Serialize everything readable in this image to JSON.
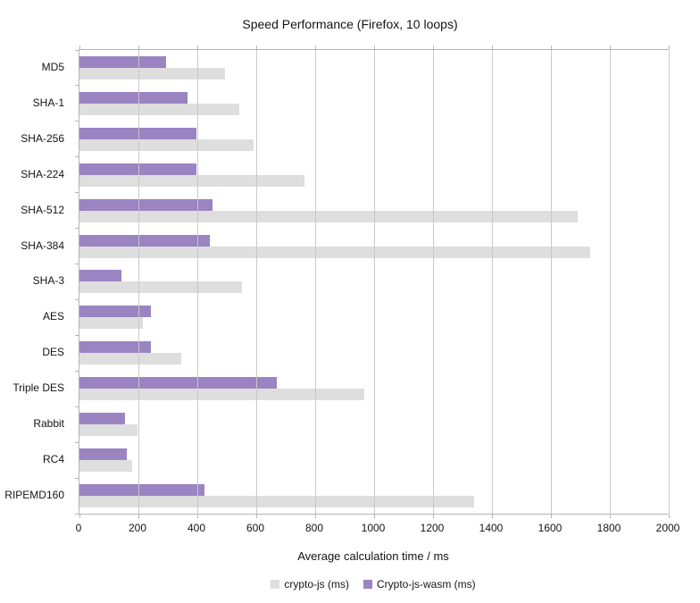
{
  "title": "Speed Performance (Firefox, 10 loops)",
  "chart_data": {
    "type": "bar",
    "orientation": "horizontal",
    "title": "Speed Performance (Firefox, 10 loops)",
    "categories": [
      "MD5",
      "SHA-1",
      "SHA-256",
      "SHA-224",
      "SHA-512",
      "SHA-384",
      "SHA-3",
      "AES",
      "DES",
      "Triple DES",
      "Rabbit",
      "RC4",
      "RIPEMD160"
    ],
    "series": [
      {
        "name": "crypto-js (ms)",
        "color": "#dedede",
        "values": [
          495,
          541,
          591,
          764,
          1692,
          1734,
          552,
          214,
          346,
          966,
          196,
          178,
          1338
        ]
      },
      {
        "name": "Crypto-js-wasm (ms)",
        "color": "#9a84c2",
        "values": [
          293,
          366,
          398,
          396,
          452,
          443,
          141,
          242,
          242,
          670,
          156,
          161,
          423
        ]
      }
    ],
    "xlabel": "Average calculation time / ms",
    "ylabel": "",
    "xlim": [
      0,
      2000
    ],
    "xticks": [
      0,
      200,
      400,
      600,
      800,
      1000,
      1200,
      1400,
      1600,
      1800,
      2000
    ],
    "grid": true,
    "legend_position": "bottom",
    "colors": {
      "axis": "#b5b5b5",
      "gridline": "#c9c9c9",
      "text": "#141414",
      "background": "#ffffff"
    }
  }
}
